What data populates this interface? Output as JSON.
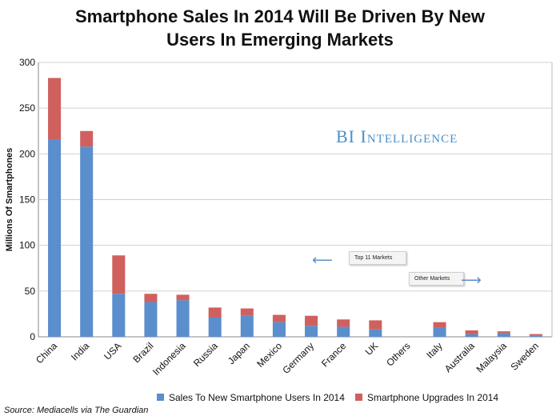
{
  "title_line1": "Smartphone Sales In 2014 Will Be Driven By New",
  "title_line2": "Users In Emerging Markets",
  "source": "Source: Mediacells via The Guardian",
  "watermark_bi": "BI",
  "watermark_intel": "Intelligence",
  "annotations": {
    "top11": "Top 11 Markets",
    "other": "Other Markets",
    "left_arrow_icon": "arrow-left",
    "right_arrow_icon": "arrow-right"
  },
  "colors": {
    "new_users": "#5b8ecd",
    "upgrades": "#d0605e"
  },
  "chart_data": {
    "type": "bar",
    "stacked": true,
    "categories": [
      "China",
      "India",
      "USA",
      "Brazil",
      "Indonesia",
      "Russia",
      "Japan",
      "Mexico",
      "Germany",
      "France",
      "UK",
      "Others",
      "Italy",
      "Australia",
      "Malaysia",
      "Sweden"
    ],
    "series": [
      {
        "name": "Sales To New Smartphone Users In 2014",
        "values": [
          216,
          208,
          47,
          38,
          40,
          21,
          23,
          16,
          12,
          11,
          8,
          0,
          10,
          3,
          4,
          1
        ]
      },
      {
        "name": "Smartphone Upgrades In 2014",
        "values": [
          67,
          17,
          42,
          9,
          6,
          11,
          8,
          8,
          11,
          8,
          10,
          0,
          6,
          4,
          2,
          2
        ]
      }
    ],
    "ylabel": "Millions Of  Smartphones",
    "xlabel": "",
    "ylim": [
      0,
      300
    ],
    "yticks": [
      0,
      50,
      100,
      150,
      200,
      250,
      300
    ],
    "grid": true,
    "legend": "bottom"
  }
}
